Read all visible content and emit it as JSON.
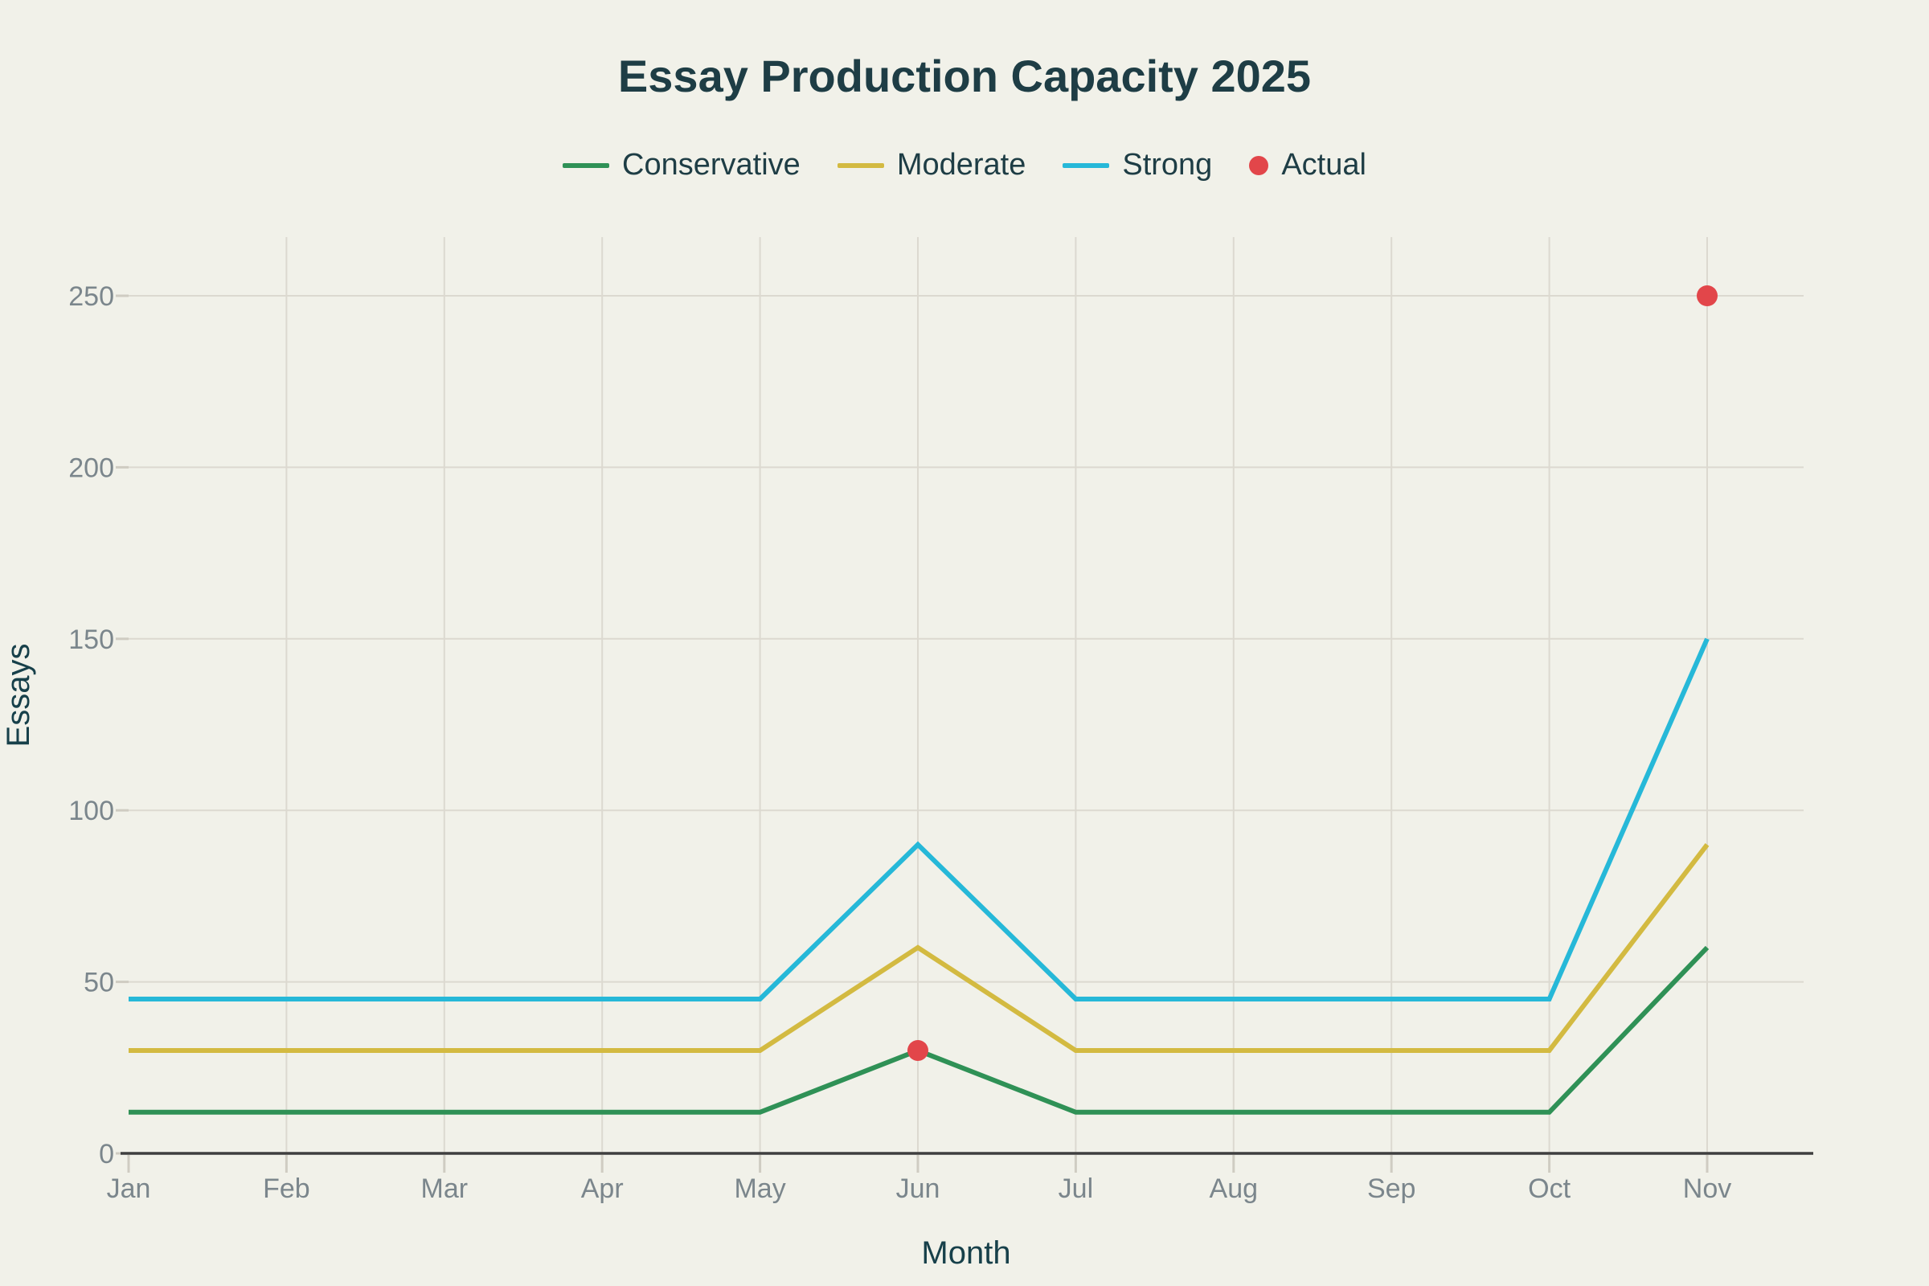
{
  "header": {
    "title": "Essay Production Capacity 2025"
  },
  "colors": {
    "background": "#F1F1E9",
    "title_text": "#1E3D45",
    "axis_label_text": "#17404A",
    "tick_text": "#7B868C",
    "gridline": "#DCD9D0",
    "tick_mark": "#CFCCC2",
    "axis_line": "#3F3F3F",
    "conservative": "#2F9156",
    "moderate": "#D3BA41",
    "strong": "#26B8D8",
    "actual": "#E2464A"
  },
  "legend": {
    "items": [
      {
        "label": "Conservative",
        "swatch": "line",
        "color": "#2F9156"
      },
      {
        "label": "Moderate",
        "swatch": "line",
        "color": "#D3BA41"
      },
      {
        "label": "Strong",
        "swatch": "line",
        "color": "#26B8D8"
      },
      {
        "label": "Actual",
        "swatch": "dot",
        "color": "#E2464A"
      }
    ]
  },
  "chart_data": {
    "type": "line",
    "title": "Essay Production Capacity 2025",
    "xlabel": "Month",
    "ylabel": "Essays",
    "categories": [
      "Jan",
      "Feb",
      "Mar",
      "Apr",
      "May",
      "Jun",
      "Jul",
      "Aug",
      "Sep",
      "Oct",
      "Nov"
    ],
    "y_ticks": [
      0,
      50,
      100,
      150,
      200,
      250
    ],
    "ylim": [
      0,
      250
    ],
    "grid": true,
    "legend_position": "top",
    "series": [
      {
        "name": "Conservative",
        "type": "line",
        "color": "#2F9156",
        "values": [
          12,
          12,
          12,
          12,
          12,
          30,
          12,
          12,
          12,
          12,
          60
        ]
      },
      {
        "name": "Moderate",
        "type": "line",
        "color": "#D3BA41",
        "values": [
          30,
          30,
          30,
          30,
          30,
          60,
          30,
          30,
          30,
          30,
          90
        ]
      },
      {
        "name": "Strong",
        "type": "line",
        "color": "#26B8D8",
        "values": [
          45,
          45,
          45,
          45,
          45,
          90,
          45,
          45,
          45,
          45,
          150
        ]
      },
      {
        "name": "Actual",
        "type": "scatter",
        "color": "#E2464A",
        "points": [
          {
            "x": "Jun",
            "y": 30
          },
          {
            "x": "Nov",
            "y": 250
          }
        ]
      }
    ]
  }
}
